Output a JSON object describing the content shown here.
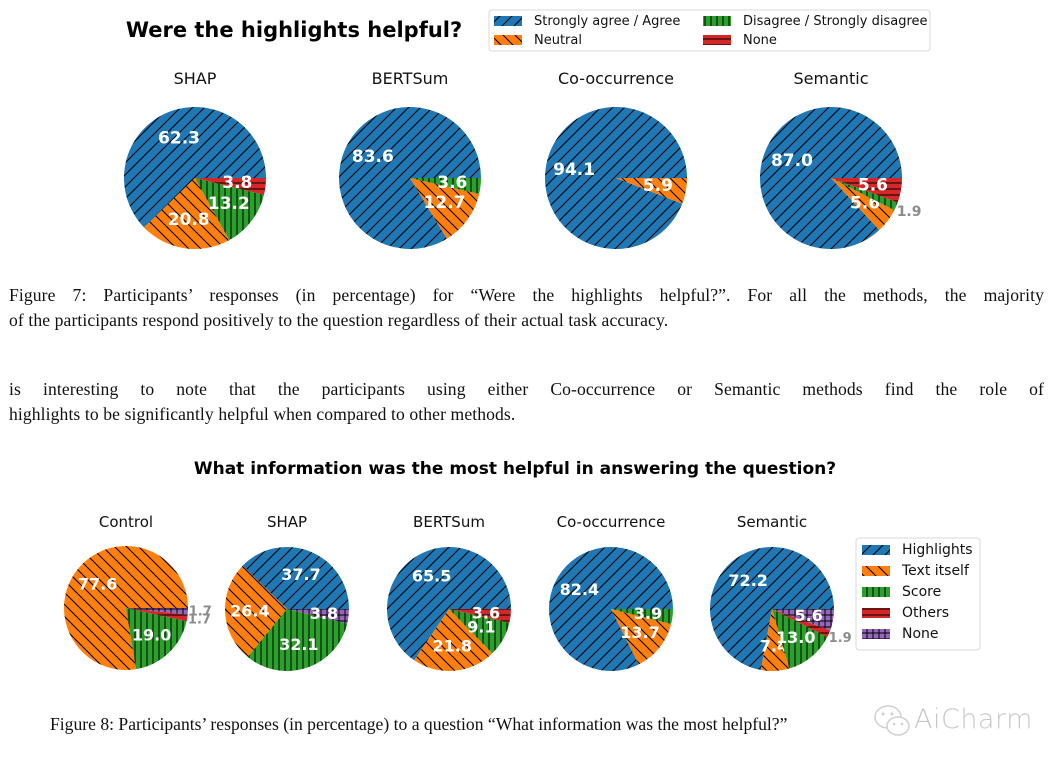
{
  "figure7": {
    "title": "Were the highlights helpful?",
    "legend": [
      {
        "label": "Strongly agree / Agree",
        "color": "#1f77b4",
        "hatch": "/"
      },
      {
        "label": "Neutral",
        "color": "#ff7f0e",
        "hatch": "\\"
      },
      {
        "label": "Disagree / Strongly disagree",
        "color": "#2ca02c",
        "hatch": "|"
      },
      {
        "label": "None",
        "color": "#d62728",
        "hatch": "-"
      }
    ],
    "caption_line1": "Figure 7:  Participants’ responses (in percentage) for “Were the highlights helpful?”.  For all the methods, the majority",
    "caption_line2": "of the participants respond positively to the question regardless of their actual task accuracy."
  },
  "body_text": {
    "line1": "is interesting to note that the participants using either Co-occurrence or Semantic methods find the role of",
    "line2": "highlights to be significantly helpful when compared to other methods."
  },
  "figure8": {
    "title": "What information was the most helpful in answering the question?",
    "legend": [
      {
        "label": "Highlights",
        "color": "#1f77b4",
        "hatch": "/"
      },
      {
        "label": "Text itself",
        "color": "#ff7f0e",
        "hatch": "\\"
      },
      {
        "label": "Score",
        "color": "#2ca02c",
        "hatch": "|"
      },
      {
        "label": "Others",
        "color": "#d62728",
        "hatch": "-"
      },
      {
        "label": "None",
        "color": "#9467bd",
        "hatch": "+"
      }
    ],
    "caption": "Figure 8:  Participants’ responses (in percentage) to a question “What information was the most helpful?”"
  },
  "watermark": "AiCharm",
  "chart_data": [
    {
      "type": "pie",
      "title": "Were the highlights helpful?",
      "categories": [
        "Strongly agree / Agree",
        "Neutral",
        "Disagree / Strongly disagree",
        "None"
      ],
      "start_angle_deg": 0,
      "direction": "counterclockwise",
      "legend_position": "top-right",
      "series": [
        {
          "name": "SHAP",
          "values": [
            62.3,
            20.8,
            13.2,
            3.8
          ]
        },
        {
          "name": "BERTSum",
          "values": [
            83.6,
            12.7,
            3.6,
            0
          ]
        },
        {
          "name": "Co-occurrence",
          "values": [
            94.1,
            5.9,
            0,
            0
          ]
        },
        {
          "name": "Semantic",
          "values": [
            87.0,
            5.6,
            1.9,
            5.6
          ]
        }
      ]
    },
    {
      "type": "pie",
      "title": "What information was the most helpful in answering the question?",
      "categories": [
        "Highlights",
        "Text itself",
        "Score",
        "Others",
        "None"
      ],
      "start_angle_deg": 0,
      "direction": "counterclockwise",
      "legend_position": "right",
      "series": [
        {
          "name": "Control",
          "values": [
            0,
            77.6,
            19.0,
            1.7,
            1.7
          ]
        },
        {
          "name": "SHAP",
          "values": [
            37.7,
            26.4,
            32.1,
            0,
            3.8
          ]
        },
        {
          "name": "BERTSum",
          "values": [
            65.5,
            21.8,
            9.1,
            3.6,
            0
          ]
        },
        {
          "name": "Co-occurrence",
          "values": [
            82.4,
            13.7,
            3.9,
            0,
            0
          ]
        },
        {
          "name": "Semantic",
          "values": [
            72.2,
            7.4,
            13.0,
            1.9,
            5.6
          ]
        }
      ]
    }
  ]
}
